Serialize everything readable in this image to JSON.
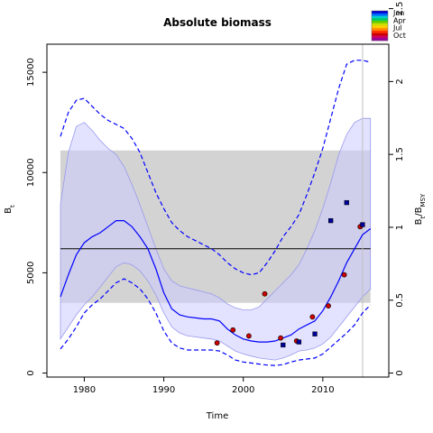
{
  "chart_data": {
    "type": "line",
    "title": "Absolute biomass",
    "xlabel": "Time",
    "ylabel": "B_t",
    "y2label": "B_t/B_MSY",
    "xlim": [
      1975.3,
      2018.3
    ],
    "ylim": [
      -200,
      16400
    ],
    "y2lim": [
      -0.0275,
      2.256
    ],
    "xticks": [
      1980,
      1990,
      2000,
      2010
    ],
    "yticks": [
      0,
      5000,
      10000,
      15000
    ],
    "y2ticks": [
      0,
      0.5,
      1,
      1.5,
      2,
      2.5
    ],
    "msy_band": {
      "low": 3500,
      "high": 11100
    },
    "msy_line": 6200,
    "vertical_line_year": 2015,
    "series": [
      {
        "role": "estimate",
        "x": [
          1977,
          1978,
          1979,
          1980,
          1981,
          1982,
          1983,
          1984,
          1985,
          1986,
          1987,
          1988,
          1989,
          1990,
          1991,
          1992,
          1993,
          1994,
          1995,
          1996,
          1997,
          1998,
          1999,
          2000,
          2001,
          2002,
          2003,
          2004,
          2005,
          2006,
          2007,
          2008,
          2009,
          2010,
          2011,
          2012,
          2013,
          2014,
          2015,
          2016
        ],
        "y": [
          3800,
          4900,
          5900,
          6500,
          6800,
          7000,
          7300,
          7600,
          7600,
          7300,
          6800,
          6200,
          5200,
          4000,
          3200,
          2900,
          2800,
          2750,
          2700,
          2700,
          2600,
          2200,
          1900,
          1700,
          1600,
          1550,
          1550,
          1600,
          1750,
          1900,
          2200,
          2400,
          2600,
          3100,
          3800,
          4600,
          5500,
          6200,
          6900,
          7200
        ]
      },
      {
        "role": "ci-upper",
        "x": [
          1977,
          1978,
          1979,
          1980,
          1981,
          1982,
          1983,
          1984,
          1985,
          1986,
          1987,
          1988,
          1989,
          1990,
          1991,
          1992,
          1993,
          1994,
          1995,
          1996,
          1997,
          1998,
          1999,
          2000,
          2001,
          2002,
          2003,
          2004,
          2005,
          2006,
          2007,
          2008,
          2009,
          2010,
          2011,
          2012,
          2013,
          2014,
          2015,
          2016
        ],
        "y": [
          11800,
          13000,
          13600,
          13700,
          13300,
          12900,
          12600,
          12400,
          12200,
          11700,
          11000,
          10000,
          9000,
          8200,
          7500,
          7100,
          6800,
          6600,
          6400,
          6200,
          5900,
          5500,
          5200,
          5000,
          4900,
          5000,
          5500,
          6100,
          6800,
          7300,
          7900,
          8900,
          10000,
          11200,
          12700,
          14200,
          15400,
          15600,
          15600,
          15500
        ]
      },
      {
        "role": "ci-lower",
        "x": [
          1977,
          1978,
          1979,
          1980,
          1981,
          1982,
          1983,
          1984,
          1985,
          1986,
          1987,
          1988,
          1989,
          1990,
          1991,
          1992,
          1993,
          1994,
          1995,
          1996,
          1997,
          1998,
          1999,
          2000,
          2001,
          2002,
          2003,
          2004,
          2005,
          2006,
          2007,
          2008,
          2009,
          2010,
          2011,
          2012,
          2013,
          2014,
          2015,
          2016
        ],
        "y": [
          1200,
          1700,
          2300,
          3000,
          3400,
          3700,
          4100,
          4500,
          4700,
          4500,
          4200,
          3700,
          3000,
          2100,
          1500,
          1250,
          1150,
          1150,
          1150,
          1150,
          1100,
          900,
          650,
          550,
          500,
          450,
          400,
          380,
          420,
          550,
          650,
          700,
          750,
          950,
          1300,
          1650,
          2000,
          2400,
          3000,
          3400
        ]
      },
      {
        "role": "band-upper",
        "x": [
          1977,
          1978,
          1979,
          1980,
          1981,
          1982,
          1983,
          1984,
          1985,
          1986,
          1987,
          1988,
          1989,
          1990,
          1991,
          1992,
          1993,
          1994,
          1995,
          1996,
          1997,
          1998,
          1999,
          2000,
          2001,
          2002,
          2003,
          2004,
          2005,
          2006,
          2007,
          2008,
          2009,
          2010,
          2011,
          2012,
          2013,
          2014,
          2015,
          2016
        ],
        "y": [
          8400,
          11000,
          12300,
          12500,
          12100,
          11600,
          11200,
          10900,
          10300,
          9400,
          8400,
          7300,
          6200,
          5200,
          4600,
          4350,
          4250,
          4150,
          4050,
          3950,
          3750,
          3450,
          3250,
          3150,
          3150,
          3300,
          3700,
          4100,
          4500,
          4900,
          5400,
          6200,
          7100,
          8200,
          9500,
          10900,
          11900,
          12500,
          12700,
          12700
        ]
      },
      {
        "role": "band-lower",
        "x": [
          1977,
          1978,
          1979,
          1980,
          1981,
          1982,
          1983,
          1984,
          1985,
          1986,
          1987,
          1988,
          1989,
          1990,
          1991,
          1992,
          1993,
          1994,
          1995,
          1996,
          1997,
          1998,
          1999,
          2000,
          2001,
          2002,
          2003,
          2004,
          2005,
          2006,
          2007,
          2008,
          2009,
          2010,
          2011,
          2012,
          2013,
          2014,
          2015,
          2016
        ],
        "y": [
          1700,
          2300,
          2900,
          3400,
          3800,
          4300,
          4800,
          5300,
          5500,
          5400,
          5100,
          4600,
          3900,
          3000,
          2300,
          2000,
          1850,
          1800,
          1750,
          1700,
          1600,
          1350,
          1100,
          950,
          850,
          750,
          700,
          650,
          750,
          900,
          1100,
          1150,
          1250,
          1450,
          1800,
          2300,
          2800,
          3300,
          3800,
          4200
        ]
      }
    ],
    "observations": [
      {
        "marker": "circle",
        "color": "#cc0000",
        "points": [
          [
            1996.7,
            1500
          ],
          [
            1998.7,
            2150
          ],
          [
            2000.7,
            1850
          ],
          [
            2002.7,
            3950
          ],
          [
            2004.7,
            1750
          ],
          [
            2006.7,
            1600
          ],
          [
            2008.7,
            2800
          ],
          [
            2010.7,
            3350
          ],
          [
            2012.7,
            4900
          ],
          [
            2014.7,
            7300
          ]
        ]
      },
      {
        "marker": "square",
        "color": "#000099",
        "points": [
          [
            2005,
            1400
          ],
          [
            2007,
            1550
          ],
          [
            2009,
            1950
          ],
          [
            2011,
            7600
          ],
          [
            2013,
            8500
          ],
          [
            2015,
            7400
          ]
        ]
      }
    ],
    "legend": {
      "position": "top-right",
      "entries": [
        {
          "label": "Jan",
          "color": "#0000cc"
        },
        {
          "label": "Apr",
          "color": "#00cc66"
        },
        {
          "label": "Jul",
          "color": "#ffcc00"
        },
        {
          "label": "Oct",
          "color": "#cc0066"
        }
      ],
      "gradient": [
        "#0000cc",
        "#0066ff",
        "#00cccc",
        "#00cc66",
        "#66cc00",
        "#ccdd00",
        "#ffcc00",
        "#ff8800",
        "#ff3300",
        "#cc0000",
        "#cc0066",
        "#990099"
      ]
    },
    "colors": {
      "estimate": "#0000ff",
      "band_fill": "#ccccff",
      "msy_fill": "#d3d3d3",
      "msy_line": "#000000",
      "vertical_line": "#c0c0c0"
    }
  }
}
